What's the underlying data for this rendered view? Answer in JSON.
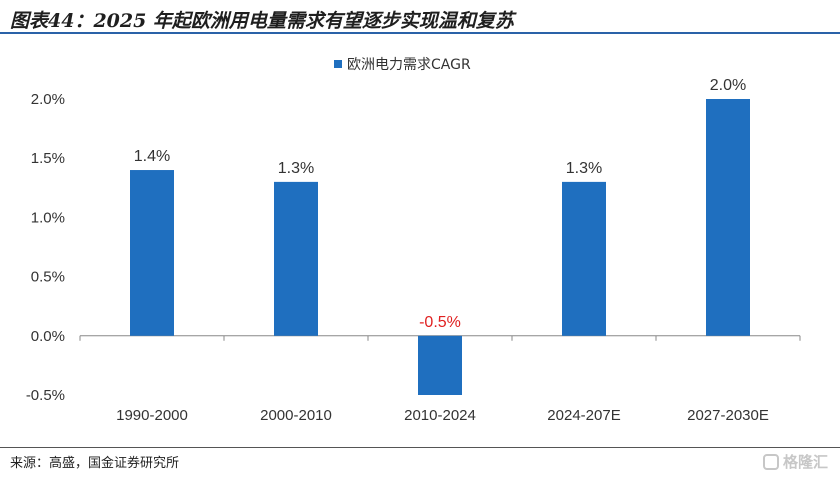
{
  "header": {
    "title": "图表44：2025 年起欧洲用电量需求有望逐步实现温和复苏"
  },
  "footer": {
    "source": "来源：高盛，国金证券研究所",
    "watermark": "格隆汇"
  },
  "colors": {
    "bar": "#1f6fbf",
    "negative_label": "#e02020",
    "axis": "#888888",
    "rule": "#2a62a8"
  },
  "chart_data": {
    "type": "bar",
    "title": "",
    "xlabel": "",
    "ylabel": "",
    "categories": [
      "1990-2000",
      "2000-2010",
      "2010-2024",
      "2024-207E",
      "2027-2030E"
    ],
    "series": [
      {
        "name": "欧洲电力需求CAGR",
        "values": [
          1.4,
          1.3,
          -0.5,
          1.3,
          2.0
        ]
      }
    ],
    "data_labels": [
      "1.4%",
      "1.3%",
      "-0.5%",
      "1.3%",
      "2.0%"
    ],
    "ylim": [
      -0.5,
      2.0
    ],
    "yticks": [
      -0.5,
      0.0,
      0.5,
      1.0,
      1.5,
      2.0
    ],
    "ytick_labels": [
      "-0.5%",
      "0.0%",
      "0.5%",
      "1.0%",
      "1.5%",
      "2.0%"
    ],
    "grid": false,
    "legend": "top-center"
  }
}
